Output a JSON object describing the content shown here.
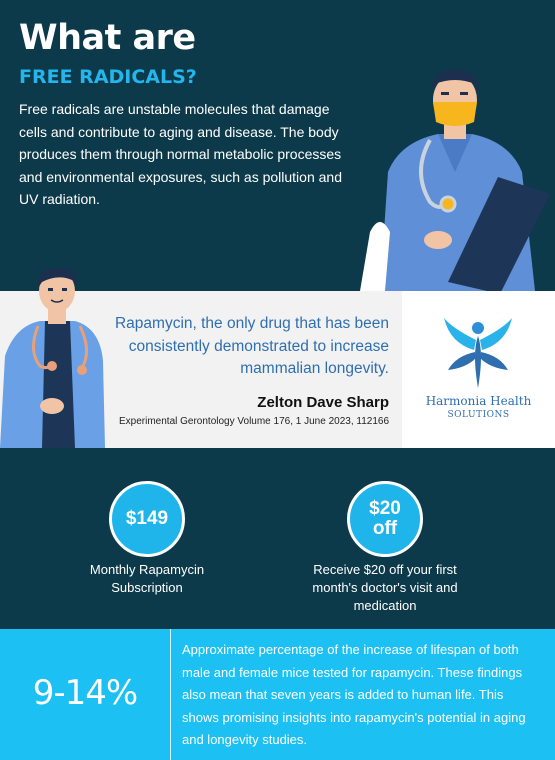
{
  "hero": {
    "title": "What are",
    "subtitle": "FREE RADICALS?",
    "body": "Free radicals are unstable molecules that damage cells and contribute to aging and disease. The body produces them through normal metabolic processes and environmental exposures, such as pollution and UV radiation."
  },
  "quote": {
    "text": "Rapamycin, the only drug that has been consistently demonstrated to increase mammalian longevity.",
    "author": "Zelton Dave Sharp",
    "source": "Experimental Gerontology Volume 176, 1 June 2023, 112166"
  },
  "logo": {
    "name": "Harmonia Health",
    "tagline": "SOLUTIONS"
  },
  "offers": [
    {
      "badge": "$149",
      "label": "Monthly Rapamycin Subscription"
    },
    {
      "badge": "$20\noff",
      "label": "Receive $20 off your first month's doctor's visit and medication"
    }
  ],
  "stat": {
    "value": "9-14%",
    "description": "Approximate percentage of the increase of lifespan of both male and female mice tested for rapamycin. These findings also mean that seven years is added to human life. This shows promising insights into rapamycin's potential in aging and longevity studies."
  },
  "colors": {
    "navy": "#0d3a4a",
    "accent_blue": "#1cc0f2",
    "quote_blue": "#2f6fb0",
    "light_gray": "#f2f2f2"
  }
}
